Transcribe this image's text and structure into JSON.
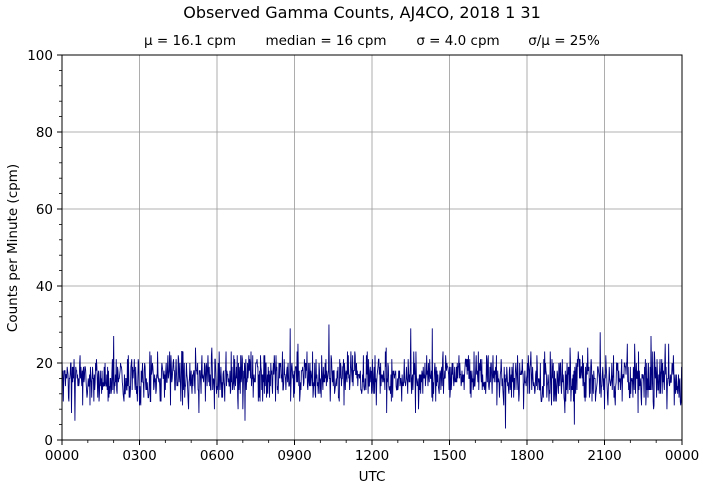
{
  "chart_data": {
    "type": "line",
    "title": "Observed Gamma Counts, AJ4CO, 2018 1 31",
    "stats": [
      "μ = 16.1 cpm",
      "median = 16 cpm",
      "σ = 4.0 cpm",
      "σ/μ = 25%"
    ],
    "xlabel": "UTC",
    "ylabel": "Counts per Minute (cpm)",
    "x_tick_labels": [
      "0000",
      "0300",
      "0600",
      "0900",
      "1200",
      "1500",
      "1800",
      "2100",
      "0000"
    ],
    "y_ticks": [
      0,
      20,
      40,
      60,
      80,
      100
    ],
    "ylim": [
      0,
      100
    ],
    "xlim_minutes": [
      0,
      1440
    ],
    "grid": true,
    "series": [
      {
        "color": "#00007f",
        "sampling": "one value per minute, 00:00 to 24:00 UTC",
        "summary": {
          "mean": 16.1,
          "median": 16,
          "stdev": 4.0,
          "min": 3,
          "max": 30
        },
        "approx_peaks": [
          {
            "time": "0200",
            "cpm": 27
          },
          {
            "time": "0850",
            "cpm": 29
          },
          {
            "time": "1020",
            "cpm": 30
          },
          {
            "time": "1330",
            "cpm": 29
          },
          {
            "time": "1420",
            "cpm": 29
          },
          {
            "time": "2050",
            "cpm": 28
          }
        ],
        "approx_minima": [
          {
            "time": "0030",
            "cpm": 5
          },
          {
            "time": "0705",
            "cpm": 5
          },
          {
            "time": "1710",
            "cpm": 3
          },
          {
            "time": "1950",
            "cpm": 4
          }
        ]
      }
    ]
  }
}
